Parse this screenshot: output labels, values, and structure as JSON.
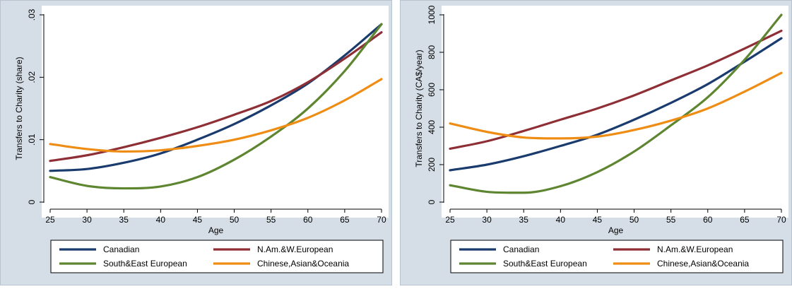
{
  "colors": {
    "outer_bg": "#d5dee6",
    "plot_bg": "#ffffff",
    "canadian": "#1a3b6e",
    "naw_european": "#8e2f36",
    "se_european": "#5e8530",
    "asian": "#ee8c14"
  },
  "chart_data": [
    {
      "type": "line",
      "xlabel": "Age",
      "ylabel": "Transfers to Charity (share)",
      "xlim": [
        25,
        70
      ],
      "ylim": [
        0,
        0.03
      ],
      "x_ticks": [
        "25",
        "30",
        "35",
        "40",
        "45",
        "50",
        "55",
        "60",
        "65",
        "70"
      ],
      "y_ticks": [
        "0",
        ".01",
        ".02",
        ".03"
      ],
      "grid": false,
      "legend": "bottom",
      "x": [
        25,
        30,
        35,
        40,
        45,
        50,
        55,
        60,
        65,
        70
      ],
      "series": [
        {
          "name": "Canadian",
          "color": "#1a3b6e",
          "values": [
            0.005,
            0.0053,
            0.0063,
            0.0078,
            0.01,
            0.0125,
            0.0155,
            0.019,
            0.0235,
            0.0285
          ]
        },
        {
          "name": "N.Am.&W.European",
          "color": "#8e2f36",
          "values": [
            0.0066,
            0.0075,
            0.0088,
            0.0103,
            0.012,
            0.014,
            0.0162,
            0.0192,
            0.023,
            0.0272
          ]
        },
        {
          "name": "South&East European",
          "color": "#5e8530",
          "values": [
            0.004,
            0.0026,
            0.0022,
            0.0025,
            0.004,
            0.0068,
            0.0105,
            0.015,
            0.021,
            0.0285
          ]
        },
        {
          "name": "Chinese,Asian&Oceania",
          "color": "#ee8c14",
          "values": [
            0.0093,
            0.0085,
            0.0081,
            0.0083,
            0.009,
            0.01,
            0.0115,
            0.0135,
            0.0163,
            0.0197
          ]
        }
      ]
    },
    {
      "type": "line",
      "xlabel": "Age",
      "ylabel": "Transfers to Charity (CA$/year)",
      "xlim": [
        25,
        70
      ],
      "ylim": [
        0,
        1000
      ],
      "x_ticks": [
        "25",
        "30",
        "35",
        "40",
        "45",
        "50",
        "55",
        "60",
        "65",
        "70"
      ],
      "y_ticks": [
        "0",
        "200",
        "400",
        "600",
        "800",
        "1000"
      ],
      "grid": false,
      "legend": "bottom",
      "x": [
        25,
        30,
        35,
        40,
        45,
        50,
        55,
        60,
        65,
        70
      ],
      "series": [
        {
          "name": "Canadian",
          "color": "#1a3b6e",
          "values": [
            170,
            200,
            245,
            300,
            360,
            440,
            530,
            630,
            750,
            875
          ]
        },
        {
          "name": "N.Am.&W.European",
          "color": "#8e2f36",
          "values": [
            285,
            325,
            380,
            440,
            500,
            570,
            650,
            730,
            820,
            915
          ]
        },
        {
          "name": "South&East European",
          "color": "#5e8530",
          "values": [
            90,
            55,
            50,
            85,
            160,
            270,
            410,
            560,
            760,
            1000
          ]
        },
        {
          "name": "Chinese,Asian&Oceania",
          "color": "#ee8c14",
          "values": [
            420,
            375,
            345,
            340,
            350,
            385,
            435,
            500,
            590,
            690
          ]
        }
      ]
    }
  ]
}
